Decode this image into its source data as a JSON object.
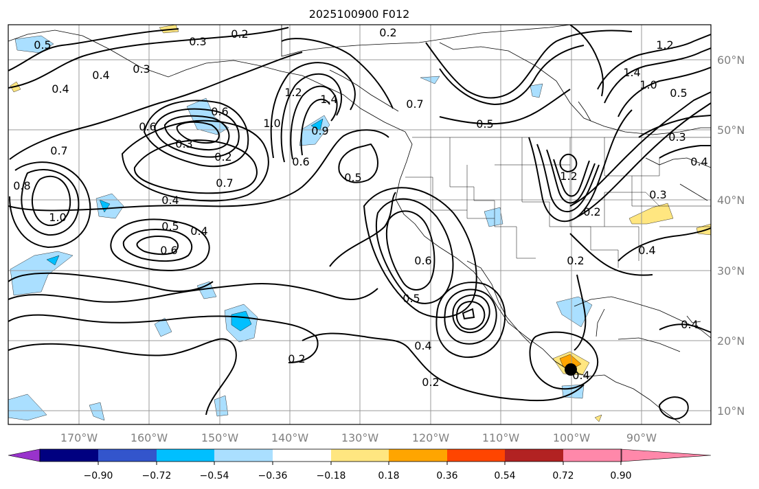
{
  "title": "2025100900 F012",
  "map": {
    "lon_labels": [
      "170°W",
      "160°W",
      "150°W",
      "140°W",
      "130°W",
      "120°W",
      "110°W",
      "100°W",
      "90°W"
    ],
    "lat_labels": [
      "60°N",
      "50°N",
      "40°N",
      "30°N",
      "20°N",
      "10°N"
    ],
    "lon_range": [
      -180,
      -80
    ],
    "lat_range": [
      8,
      66
    ],
    "contour_labels": [
      "0.2",
      "0.3",
      "0.2",
      "0.5",
      "0.3",
      "0.4",
      "0.4",
      "1.2",
      "1.4",
      "0.9",
      "1.0",
      "0.7",
      "0.5",
      "1.4",
      "1.2",
      "1.0",
      "0.5",
      "0.3",
      "0.4",
      "0.6",
      "0.3",
      "0.2",
      "0.6",
      "0.7",
      "0.5",
      "0.6",
      "0.7",
      "0.8",
      "1.0",
      "0.4",
      "0.5",
      "0.4",
      "0.6",
      "0.6",
      "0.5",
      "0.4",
      "0.2",
      "0.2",
      "1.2",
      "0.2",
      "0.3",
      "0.4",
      "0.4",
      "0.2",
      "0.4"
    ],
    "marker": "storm-center-dot"
  },
  "colorbar": {
    "ticks": [
      "−0.90",
      "−0.72",
      "−0.54",
      "−0.36",
      "−0.18",
      "0.18",
      "0.36",
      "0.54",
      "0.72",
      "0.90"
    ],
    "colors": [
      "#9933cc",
      "#000080",
      "#3355cc",
      "#00bfff",
      "#aadfff",
      "#ffffff",
      "#ffe680",
      "#ffa500",
      "#ff4500",
      "#b22222",
      "#ff88aa"
    ]
  }
}
